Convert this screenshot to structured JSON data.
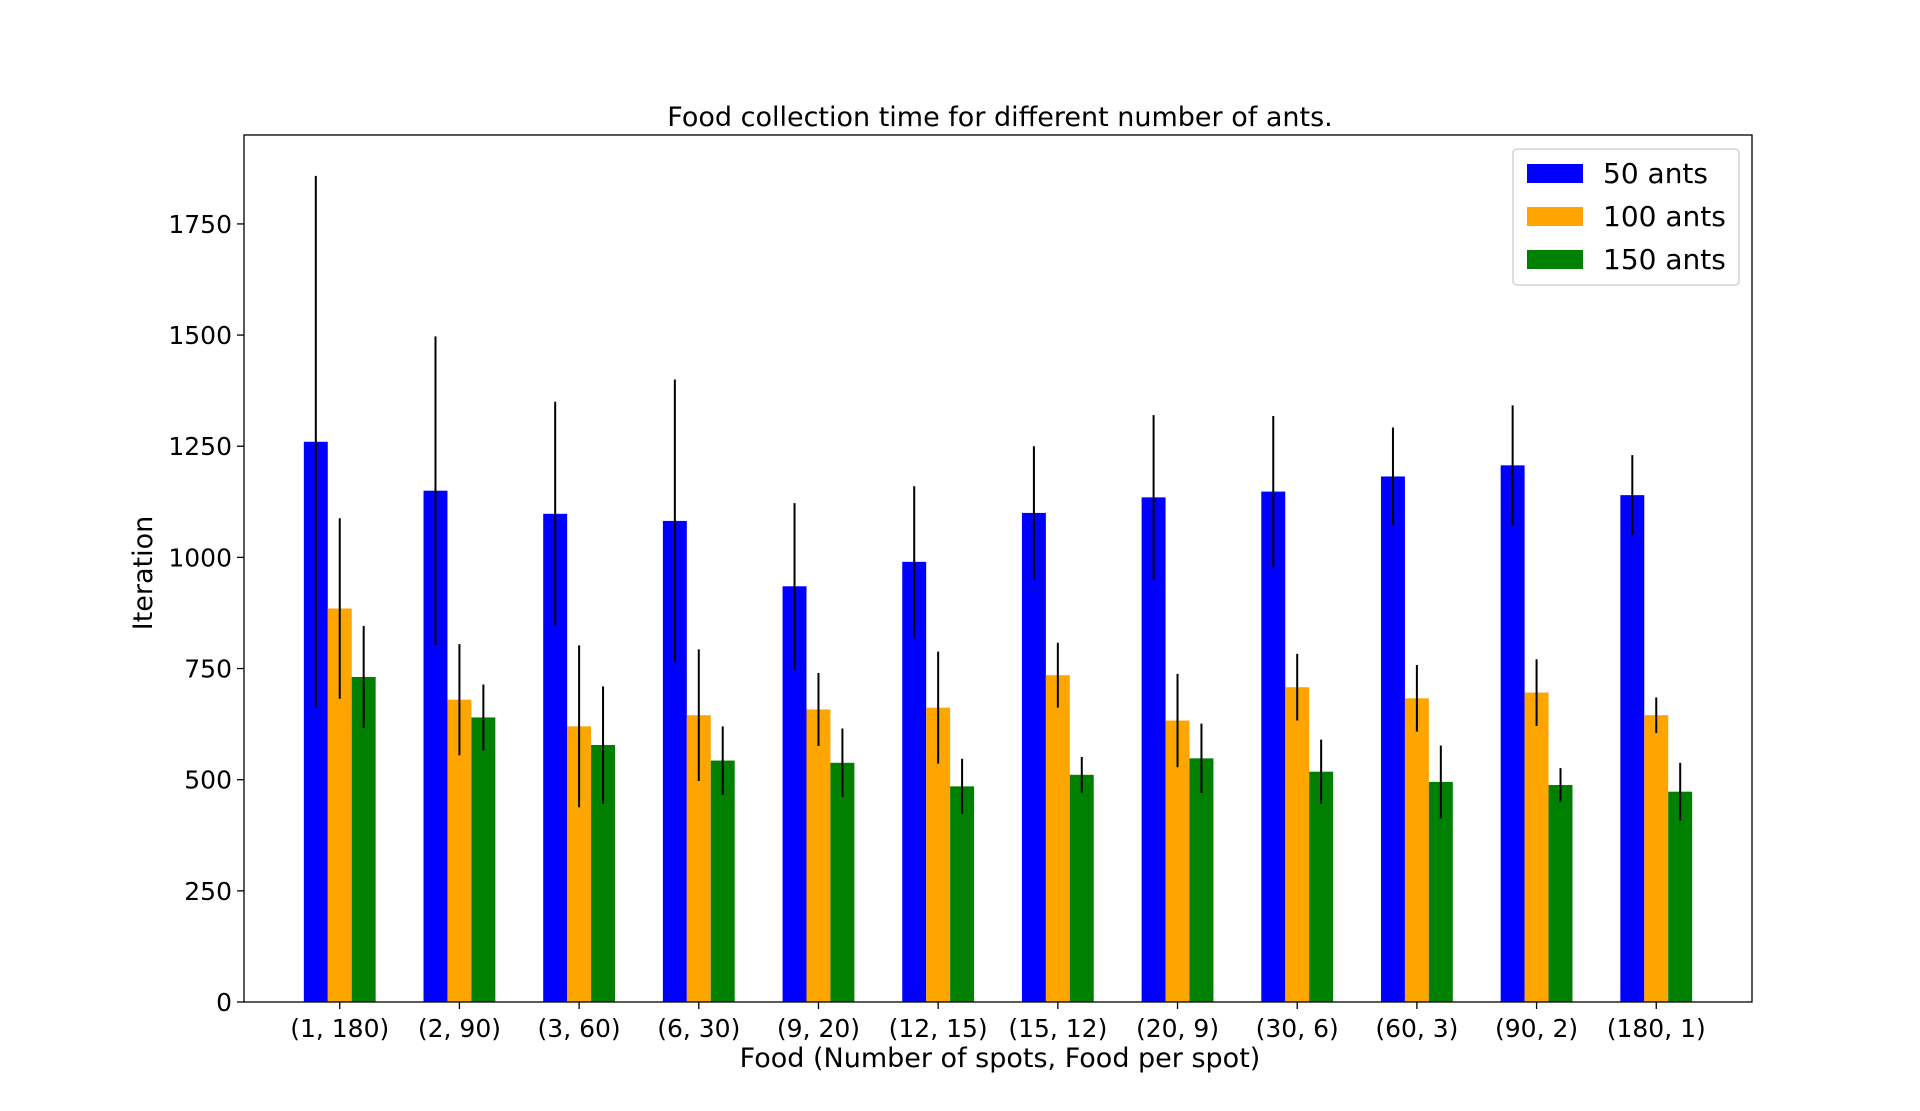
{
  "chart_data": {
    "type": "bar",
    "title": "Food collection time for different number of ants.",
    "xlabel": "Food (Number of spots, Food per spot)",
    "ylabel": "Iteration",
    "ylim": [
      0,
      1950
    ],
    "yticks": [
      0,
      250,
      500,
      750,
      1000,
      1250,
      1500,
      1750
    ],
    "grid": false,
    "legend_position": "top-right",
    "categories": [
      "(1, 180)",
      "(2, 90)",
      "(3, 60)",
      "(6, 30)",
      "(9, 20)",
      "(12, 15)",
      "(15, 12)",
      "(20, 9)",
      "(30, 6)",
      "(60, 3)",
      "(90, 2)",
      "(180, 1)"
    ],
    "series": [
      {
        "name": "50 ants",
        "color": "#0000ff",
        "values": [
          1260,
          1150,
          1098,
          1082,
          935,
          990,
          1100,
          1135,
          1148,
          1182,
          1207,
          1140
        ],
        "errors": [
          598,
          347,
          252,
          318,
          187,
          170,
          150,
          185,
          170,
          110,
          135,
          90
        ]
      },
      {
        "name": "100 ants",
        "color": "#ffa500",
        "values": [
          885,
          680,
          620,
          645,
          658,
          662,
          735,
          633,
          708,
          683,
          696,
          645
        ],
        "errors": [
          203,
          125,
          182,
          148,
          82,
          126,
          73,
          105,
          75,
          75,
          75,
          40
        ]
      },
      {
        "name": "150 ants",
        "color": "#008000",
        "values": [
          731,
          640,
          578,
          543,
          538,
          485,
          511,
          548,
          518,
          495,
          488,
          473
        ],
        "errors": [
          115,
          74,
          132,
          77,
          77,
          62,
          40,
          78,
          72,
          82,
          38,
          65
        ]
      }
    ]
  }
}
